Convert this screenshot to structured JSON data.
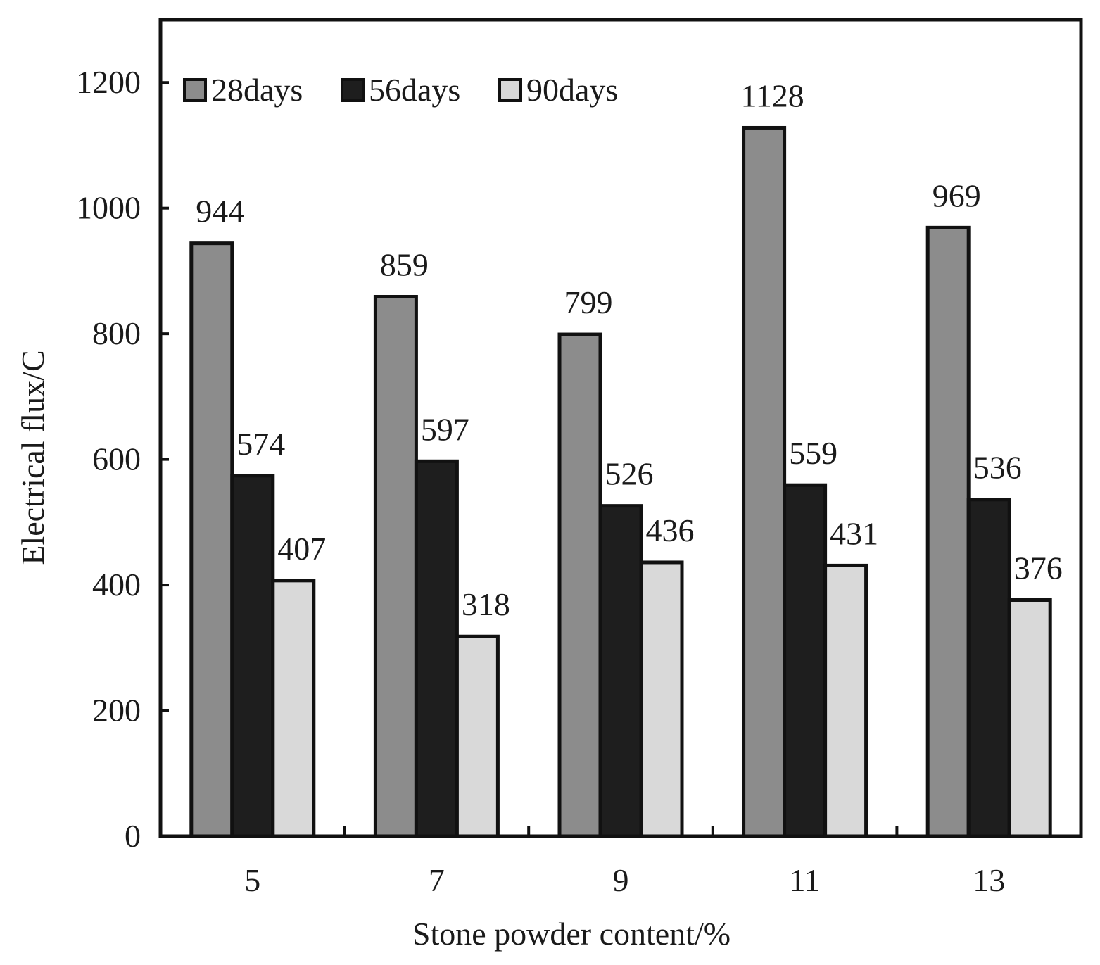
{
  "chart_data": {
    "type": "bar",
    "title": "",
    "xlabel": "Stone powder content/%",
    "ylabel": "Electrical flux/C",
    "categories": [
      "5",
      "7",
      "9",
      "11",
      "13"
    ],
    "series": [
      {
        "name": "28days",
        "values": [
          944,
          859,
          799,
          1128,
          969
        ],
        "color": "#8c8c8c"
      },
      {
        "name": "56days",
        "values": [
          574,
          597,
          526,
          559,
          536
        ],
        "color": "#1e1e1e"
      },
      {
        "name": "90days",
        "values": [
          407,
          318,
          436,
          431,
          376
        ],
        "color": "#d9d9d9"
      }
    ],
    "ylim": [
      0,
      1300
    ],
    "yticks": [
      "0",
      "200",
      "400",
      "600",
      "800",
      "1000",
      "1200"
    ],
    "legend_position": "top-left",
    "grid": false
  }
}
